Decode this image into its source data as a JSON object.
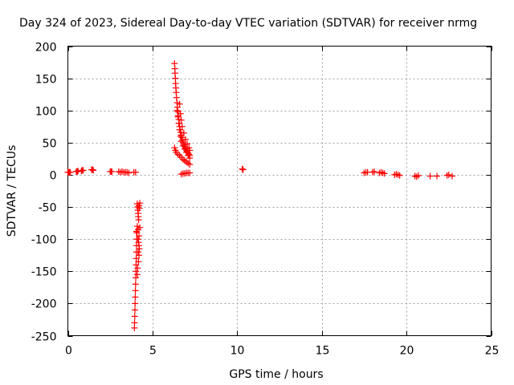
{
  "chart_data": {
    "type": "scatter",
    "title": "Day 324 of 2023, Sidereal Day-to-day VTEC variation (SDTVAR) for receiver nrmg",
    "xlabel": "GPS time / hours",
    "ylabel": "SDTVAR / TECUs",
    "xlim": [
      0,
      25
    ],
    "ylim": [
      -250,
      200
    ],
    "xticks": [
      0,
      5,
      10,
      15,
      20,
      25
    ],
    "yticks": [
      -250,
      -200,
      -150,
      -100,
      -50,
      0,
      50,
      100,
      150,
      200
    ],
    "grid": true,
    "marker": "plus",
    "color": "#ff0000",
    "series": [
      {
        "name": "SDTVAR",
        "points": [
          [
            0.0,
            4
          ],
          [
            0.05,
            4
          ],
          [
            0.1,
            4
          ],
          [
            0.15,
            4
          ],
          [
            0.5,
            5
          ],
          [
            0.55,
            5
          ],
          [
            0.6,
            6
          ],
          [
            0.8,
            6
          ],
          [
            0.85,
            7
          ],
          [
            0.9,
            7
          ],
          [
            1.4,
            8
          ],
          [
            1.45,
            8
          ],
          [
            1.5,
            7
          ],
          [
            2.5,
            5
          ],
          [
            2.55,
            5
          ],
          [
            2.6,
            5
          ],
          [
            3.0,
            5
          ],
          [
            3.1,
            4
          ],
          [
            3.2,
            5
          ],
          [
            3.3,
            4
          ],
          [
            3.4,
            4
          ],
          [
            3.5,
            4
          ],
          [
            3.6,
            3
          ],
          [
            3.9,
            4
          ],
          [
            4.0,
            4
          ],
          [
            4.1,
            -45
          ],
          [
            4.12,
            -50
          ],
          [
            4.13,
            -55
          ],
          [
            4.15,
            -60
          ],
          [
            4.16,
            -65
          ],
          [
            4.18,
            -70
          ],
          [
            4.2,
            -48
          ],
          [
            4.22,
            -52
          ],
          [
            4.25,
            -44
          ],
          [
            4.1,
            -80
          ],
          [
            4.08,
            -90
          ],
          [
            4.07,
            -100
          ],
          [
            4.06,
            -110
          ],
          [
            4.05,
            -120
          ],
          [
            4.04,
            -130
          ],
          [
            4.03,
            -140
          ],
          [
            4.02,
            -150
          ],
          [
            4.01,
            -160
          ],
          [
            4.0,
            -170
          ],
          [
            3.99,
            -180
          ],
          [
            3.98,
            -190
          ],
          [
            3.97,
            -200
          ],
          [
            3.96,
            -210
          ],
          [
            3.95,
            -220
          ],
          [
            3.94,
            -230
          ],
          [
            3.93,
            -238
          ],
          [
            4.15,
            -85
          ],
          [
            4.2,
            -95
          ],
          [
            4.18,
            -105
          ],
          [
            4.22,
            -115
          ],
          [
            4.2,
            -125
          ],
          [
            4.17,
            -135
          ],
          [
            4.12,
            -145
          ],
          [
            4.1,
            -155
          ],
          [
            4.14,
            -100
          ],
          [
            4.25,
            -82
          ],
          [
            4.05,
            -88
          ],
          [
            4.2,
            -110
          ],
          [
            4.15,
            -120
          ],
          [
            6.3,
            173
          ],
          [
            6.32,
            165
          ],
          [
            6.33,
            158
          ],
          [
            6.35,
            150
          ],
          [
            6.36,
            142
          ],
          [
            6.38,
            135
          ],
          [
            6.4,
            128
          ],
          [
            6.42,
            120
          ],
          [
            6.45,
            112
          ],
          [
            6.47,
            105
          ],
          [
            6.5,
            98
          ],
          [
            6.52,
            92
          ],
          [
            6.55,
            86
          ],
          [
            6.58,
            80
          ],
          [
            6.6,
            75
          ],
          [
            6.63,
            70
          ],
          [
            6.66,
            66
          ],
          [
            6.7,
            62
          ],
          [
            6.73,
            58
          ],
          [
            6.77,
            54
          ],
          [
            6.8,
            50
          ],
          [
            6.85,
            47
          ],
          [
            6.9,
            44
          ],
          [
            6.95,
            41
          ],
          [
            7.0,
            38
          ],
          [
            7.05,
            36
          ],
          [
            7.1,
            34
          ],
          [
            7.15,
            32
          ],
          [
            7.2,
            30
          ],
          [
            6.45,
            100
          ],
          [
            6.5,
            90
          ],
          [
            6.55,
            80
          ],
          [
            6.6,
            70
          ],
          [
            6.65,
            60
          ],
          [
            6.7,
            52
          ],
          [
            6.8,
            45
          ],
          [
            6.9,
            40
          ],
          [
            7.0,
            35
          ],
          [
            7.1,
            30
          ],
          [
            7.2,
            26
          ],
          [
            6.6,
            110
          ],
          [
            6.65,
            95
          ],
          [
            6.7,
            85
          ],
          [
            6.75,
            75
          ],
          [
            6.85,
            65
          ],
          [
            6.95,
            55
          ],
          [
            7.05,
            48
          ],
          [
            7.15,
            42
          ],
          [
            7.2,
            38
          ],
          [
            6.3,
            42
          ],
          [
            6.35,
            38
          ],
          [
            6.4,
            35
          ],
          [
            6.5,
            32
          ],
          [
            6.6,
            30
          ],
          [
            6.7,
            27
          ],
          [
            6.8,
            24
          ],
          [
            6.9,
            22
          ],
          [
            7.0,
            20
          ],
          [
            7.1,
            18
          ],
          [
            7.2,
            16
          ],
          [
            6.7,
            1
          ],
          [
            6.8,
            2
          ],
          [
            6.9,
            2
          ],
          [
            7.0,
            3
          ],
          [
            7.1,
            3
          ],
          [
            7.2,
            3
          ],
          [
            10.3,
            9
          ],
          [
            10.35,
            8
          ],
          [
            17.5,
            3
          ],
          [
            17.6,
            4
          ],
          [
            17.7,
            4
          ],
          [
            18.0,
            4
          ],
          [
            18.1,
            5
          ],
          [
            18.4,
            3
          ],
          [
            18.5,
            4
          ],
          [
            18.6,
            3
          ],
          [
            18.7,
            2
          ],
          [
            19.3,
            0
          ],
          [
            19.4,
            1
          ],
          [
            19.5,
            0
          ],
          [
            19.6,
            -1
          ],
          [
            20.5,
            -2
          ],
          [
            20.6,
            -3
          ],
          [
            20.7,
            -1
          ],
          [
            21.4,
            -2
          ],
          [
            21.8,
            -2
          ],
          [
            22.4,
            -1
          ],
          [
            22.5,
            0
          ],
          [
            22.7,
            -2
          ]
        ]
      }
    ]
  }
}
